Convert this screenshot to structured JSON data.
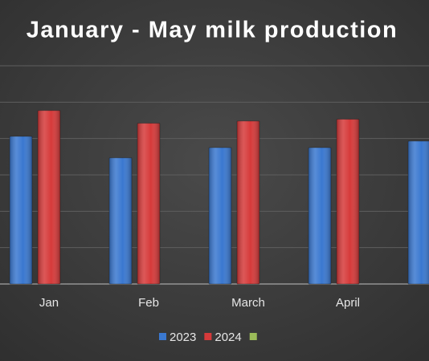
{
  "chart_data": {
    "type": "bar",
    "title": "January - May milk production",
    "categories": [
      "Jan",
      "Feb",
      "March",
      "April",
      null
    ],
    "series": [
      {
        "name": "2023",
        "color": "#3a78d0",
        "values": [
          4.06,
          3.47,
          3.75,
          3.75,
          3.93
        ]
      },
      {
        "name": "2024",
        "color": "#d63a3a",
        "values": [
          4.77,
          4.42,
          4.48,
          4.53,
          null
        ]
      },
      {
        "name": null,
        "color": "#9bbb59",
        "values": [
          null,
          null,
          null,
          null,
          null
        ]
      }
    ],
    "ylim": [
      0,
      6
    ],
    "yticks": [
      0,
      1,
      2,
      3,
      4,
      5,
      6
    ],
    "grid": true
  }
}
